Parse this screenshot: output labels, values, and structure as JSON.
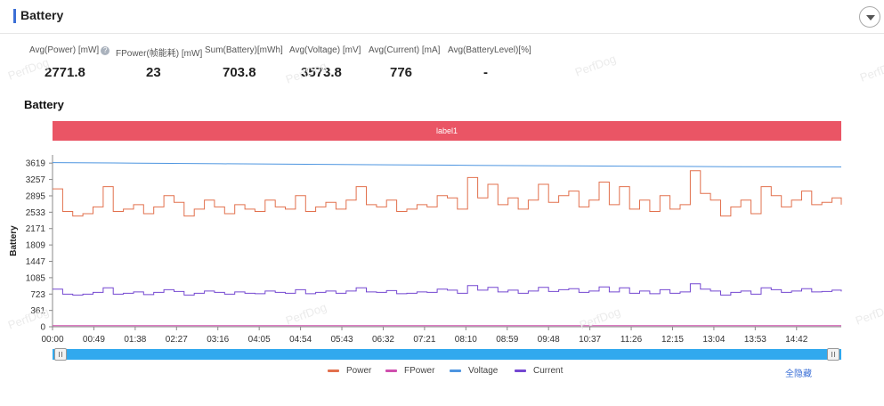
{
  "panel": {
    "title": "Battery"
  },
  "stats": [
    {
      "label": "Avg(Power) [mW]",
      "value": "2771.8",
      "help": true
    },
    {
      "label": "FPower(帧能耗) [mW]",
      "value": "23"
    },
    {
      "label": "Sum(Battery)[mWh]",
      "value": "703.8"
    },
    {
      "label": "Avg(Voltage) [mV]",
      "value": "3573.8"
    },
    {
      "label": "Avg(Current) [mA]",
      "value": "776"
    },
    {
      "label": "Avg(BatteryLevel)[%]",
      "value": "-"
    }
  ],
  "chart_title": "Battery",
  "label_band": "label1",
  "watermark": "PerfDog",
  "hide_all": "全隐藏",
  "chart_data": {
    "type": "line",
    "ylabel": "Battery",
    "y_ticks": [
      0,
      361,
      723,
      1085,
      1447,
      1809,
      2171,
      2533,
      2895,
      3257,
      3619
    ],
    "ylim": [
      0,
      3800
    ],
    "x_ticks": [
      "00:00",
      "00:49",
      "01:38",
      "02:27",
      "03:16",
      "04:05",
      "04:54",
      "05:43",
      "06:32",
      "07:21",
      "08:10",
      "08:59",
      "09:48",
      "10:37",
      "11:26",
      "12:15",
      "13:04",
      "13:53",
      "14:42"
    ],
    "x_tick_seconds": [
      0,
      49,
      98,
      147,
      196,
      245,
      294,
      343,
      392,
      441,
      490,
      539,
      588,
      637,
      686,
      735,
      784,
      833,
      882
    ],
    "x_range_seconds": [
      0,
      935
    ],
    "grid": false,
    "legend_placement": "bottom",
    "series": [
      {
        "name": "Power",
        "color": "#e2704d",
        "step": true,
        "x": [
          0,
          12,
          24,
          36,
          48,
          60,
          72,
          84,
          96,
          108,
          120,
          132,
          144,
          156,
          168,
          180,
          192,
          204,
          216,
          228,
          240,
          252,
          264,
          276,
          288,
          300,
          312,
          324,
          336,
          348,
          360,
          372,
          384,
          396,
          408,
          420,
          432,
          444,
          456,
          468,
          480,
          492,
          504,
          516,
          528,
          540,
          552,
          564,
          576,
          588,
          600,
          612,
          624,
          636,
          648,
          660,
          672,
          684,
          696,
          708,
          720,
          732,
          744,
          756,
          768,
          780,
          792,
          804,
          816,
          828,
          840,
          852,
          864,
          876,
          888,
          900,
          912,
          924,
          935
        ],
        "y": [
          3050,
          2550,
          2450,
          2500,
          2650,
          3100,
          2550,
          2600,
          2700,
          2500,
          2650,
          2900,
          2750,
          2450,
          2600,
          2800,
          2650,
          2500,
          2700,
          2600,
          2550,
          2800,
          2650,
          2600,
          2900,
          2550,
          2650,
          2750,
          2600,
          2800,
          3100,
          2700,
          2650,
          2800,
          2550,
          2600,
          2700,
          2650,
          2900,
          2850,
          2600,
          3300,
          2850,
          3150,
          2700,
          2850,
          2600,
          2800,
          3150,
          2750,
          2900,
          3000,
          2650,
          2800,
          3200,
          2700,
          3100,
          2600,
          2800,
          2550,
          2900,
          2600,
          2700,
          3450,
          2950,
          2800,
          2450,
          2650,
          2800,
          2500,
          3100,
          2900,
          2650,
          2800,
          3000,
          2700,
          2750,
          2850,
          2700
        ]
      },
      {
        "name": "FPower",
        "color": "#cf4fae",
        "step": false,
        "x": [
          0,
          935
        ],
        "y": [
          23,
          23
        ]
      },
      {
        "name": "Voltage",
        "color": "#4d95e0",
        "step": false,
        "x": [
          0,
          100,
          200,
          300,
          400,
          500,
          600,
          700,
          800,
          935
        ],
        "y": [
          3630,
          3618,
          3605,
          3593,
          3581,
          3570,
          3560,
          3550,
          3540,
          3535
        ]
      },
      {
        "name": "Current",
        "color": "#7447d1",
        "step": true,
        "x": [
          0,
          12,
          24,
          36,
          48,
          60,
          72,
          84,
          96,
          108,
          120,
          132,
          144,
          156,
          168,
          180,
          192,
          204,
          216,
          228,
          240,
          252,
          264,
          276,
          288,
          300,
          312,
          324,
          336,
          348,
          360,
          372,
          384,
          396,
          408,
          420,
          432,
          444,
          456,
          468,
          480,
          492,
          504,
          516,
          528,
          540,
          552,
          564,
          576,
          588,
          600,
          612,
          624,
          636,
          648,
          660,
          672,
          684,
          696,
          708,
          720,
          732,
          744,
          756,
          768,
          780,
          792,
          804,
          816,
          828,
          840,
          852,
          864,
          876,
          888,
          900,
          912,
          924,
          935
        ],
        "y": [
          830,
          720,
          700,
          720,
          760,
          860,
          720,
          740,
          770,
          710,
          760,
          820,
          780,
          700,
          740,
          790,
          760,
          720,
          770,
          740,
          730,
          790,
          760,
          740,
          820,
          730,
          760,
          790,
          740,
          790,
          860,
          770,
          760,
          800,
          730,
          740,
          770,
          760,
          830,
          810,
          740,
          910,
          810,
          870,
          770,
          810,
          740,
          790,
          870,
          780,
          820,
          840,
          760,
          790,
          880,
          770,
          860,
          740,
          790,
          730,
          820,
          740,
          770,
          950,
          830,
          790,
          700,
          760,
          790,
          720,
          860,
          820,
          760,
          790,
          840,
          770,
          780,
          810,
          780
        ]
      }
    ]
  }
}
